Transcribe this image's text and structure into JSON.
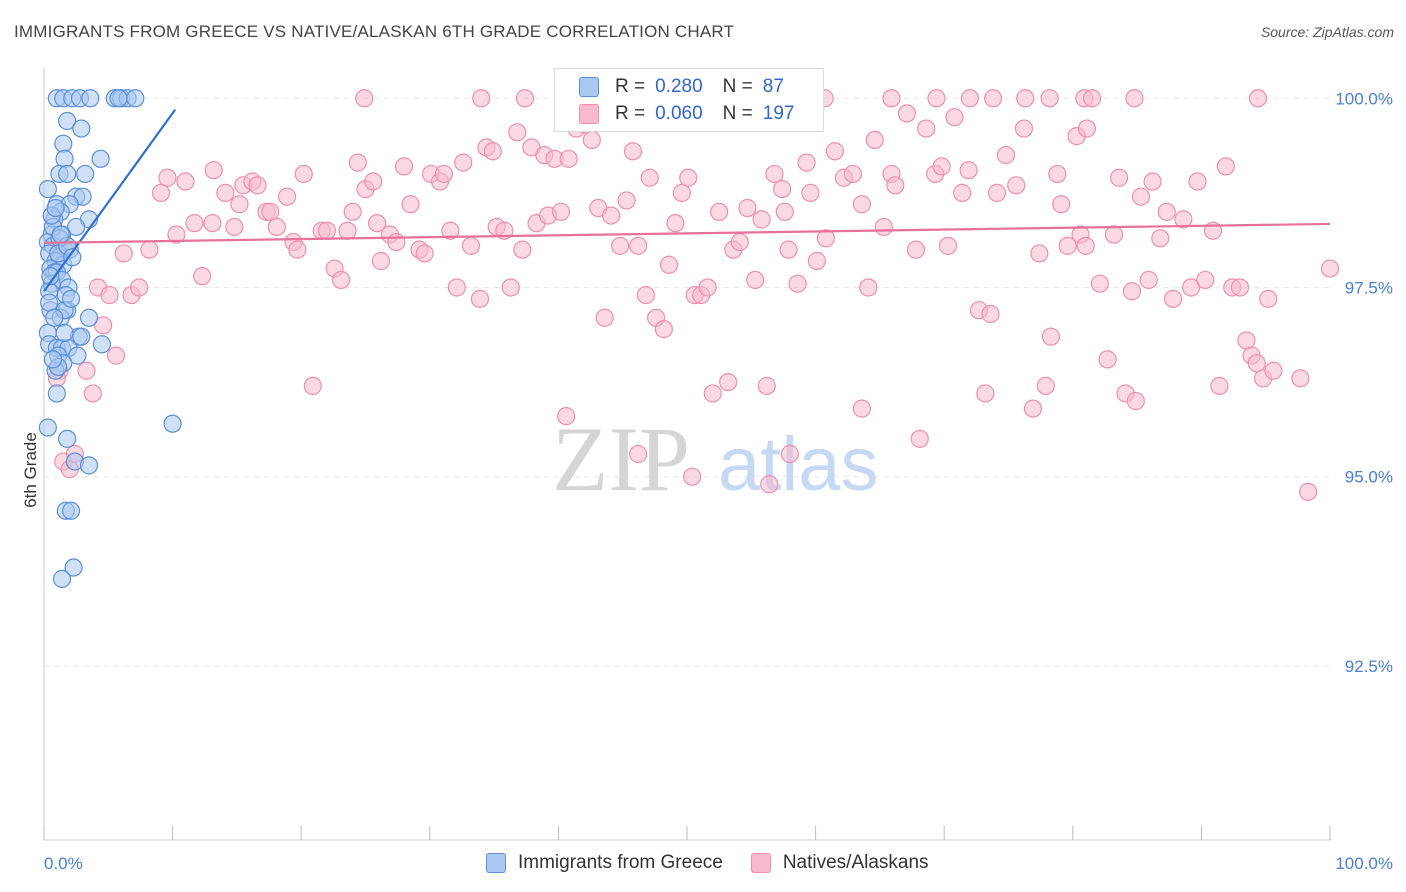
{
  "title": "IMMIGRANTS FROM GREECE VS NATIVE/ALASKAN 6TH GRADE CORRELATION CHART",
  "source": "Source: ZipAtlas.com",
  "watermark": {
    "zip": "ZIP",
    "atlas": "atlas"
  },
  "legend": {
    "rows": [
      {
        "r_label": "R =",
        "r_value": "0.280",
        "n_label": "N =",
        "n_value": "87"
      },
      {
        "r_label": "R =",
        "r_value": "0.060",
        "n_label": "N =",
        "n_value": "197"
      }
    ]
  },
  "bottom_legend": {
    "series1": "Immigrants from Greece",
    "series2": "Natives/Alaskans"
  },
  "colors": {
    "blue_fill": "#aac8f0",
    "blue_stroke": "#5b8fd6",
    "blue_line": "#2f6fd0",
    "pink_fill": "#f7b9cc",
    "pink_stroke": "#ee8fae",
    "pink_line": "#e8709a",
    "grid": "#e6e6e6",
    "tick_text": "#4a7fd0"
  },
  "chart_data": {
    "type": "scatter",
    "title": "IMMIGRANTS FROM GREECE VS NATIVE/ALASKAN 6TH GRADE CORRELATION CHART",
    "xlabel": "",
    "ylabel": "6th Grade",
    "xlim": [
      0,
      100
    ],
    "ylim": [
      90.2,
      100.4
    ],
    "x_tick_labels": [
      "0.0%",
      "100.0%"
    ],
    "y_ticks": [
      92.5,
      95.0,
      97.5,
      100.0
    ],
    "y_tick_labels": [
      "92.5%",
      "95.0%",
      "97.5%",
      "100.0%"
    ],
    "series": [
      {
        "name": "Immigrants from Greece",
        "R": 0.28,
        "N": 87,
        "trend": [
          [
            0,
            97.45
          ],
          [
            10.2,
            99.85
          ]
        ],
        "points": [
          [
            1.0,
            100.0
          ],
          [
            1.5,
            100.0
          ],
          [
            2.2,
            100.0
          ],
          [
            2.8,
            100.0
          ],
          [
            3.6,
            100.0
          ],
          [
            5.5,
            100.0
          ],
          [
            6.0,
            100.0
          ],
          [
            6.5,
            100.0
          ],
          [
            7.1,
            100.0
          ],
          [
            5.8,
            100.0
          ],
          [
            1.8,
            99.7
          ],
          [
            2.9,
            99.6
          ],
          [
            1.5,
            99.4
          ],
          [
            4.4,
            99.2
          ],
          [
            1.6,
            99.2
          ],
          [
            1.2,
            99.0
          ],
          [
            1.8,
            99.0
          ],
          [
            3.2,
            99.0
          ],
          [
            2.5,
            98.7
          ],
          [
            3.0,
            98.7
          ],
          [
            1.0,
            98.6
          ],
          [
            2.0,
            98.6
          ],
          [
            1.3,
            98.5
          ],
          [
            0.8,
            98.4
          ],
          [
            3.5,
            98.4
          ],
          [
            2.5,
            98.3
          ],
          [
            0.6,
            98.2
          ],
          [
            1.4,
            98.2
          ],
          [
            0.3,
            98.1
          ],
          [
            0.7,
            98.05
          ],
          [
            1.6,
            98.0
          ],
          [
            2.0,
            98.0
          ],
          [
            0.4,
            97.95
          ],
          [
            1.2,
            97.9
          ],
          [
            0.9,
            97.85
          ],
          [
            1.5,
            97.8
          ],
          [
            0.5,
            97.75
          ],
          [
            0.8,
            97.7
          ],
          [
            1.0,
            97.7
          ],
          [
            1.4,
            97.6
          ],
          [
            0.6,
            97.55
          ],
          [
            1.9,
            97.5
          ],
          [
            0.4,
            97.45
          ],
          [
            1.7,
            97.4
          ],
          [
            0.5,
            97.2
          ],
          [
            1.8,
            97.2
          ],
          [
            1.3,
            97.1
          ],
          [
            3.5,
            97.1
          ],
          [
            1.6,
            97.2
          ],
          [
            0.3,
            96.9
          ],
          [
            2.7,
            96.85
          ],
          [
            0.4,
            96.75
          ],
          [
            4.5,
            96.75
          ],
          [
            1.0,
            96.7
          ],
          [
            1.4,
            96.7
          ],
          [
            1.9,
            96.7
          ],
          [
            1.1,
            96.6
          ],
          [
            2.6,
            96.6
          ],
          [
            1.5,
            96.5
          ],
          [
            0.9,
            96.4
          ],
          [
            1.0,
            96.1
          ],
          [
            0.3,
            95.65
          ],
          [
            1.8,
            95.5
          ],
          [
            10.0,
            95.7
          ],
          [
            2.4,
            95.2
          ],
          [
            3.5,
            95.15
          ],
          [
            1.7,
            94.55
          ],
          [
            2.1,
            94.55
          ],
          [
            2.3,
            93.8
          ],
          [
            1.4,
            93.65
          ],
          [
            0.3,
            98.8
          ],
          [
            0.7,
            98.3
          ],
          [
            1.2,
            98.15
          ],
          [
            1.1,
            97.95
          ],
          [
            0.5,
            97.65
          ],
          [
            2.1,
            97.35
          ],
          [
            0.6,
            98.45
          ],
          [
            1.8,
            98.05
          ],
          [
            2.2,
            97.9
          ],
          [
            0.9,
            98.55
          ],
          [
            1.3,
            98.2
          ],
          [
            0.4,
            97.3
          ],
          [
            1.6,
            96.9
          ],
          [
            0.8,
            97.1
          ],
          [
            2.9,
            96.85
          ],
          [
            1.1,
            96.45
          ],
          [
            0.7,
            96.55
          ]
        ]
      },
      {
        "name": "Natives/Alaskans",
        "R": 0.06,
        "N": 197,
        "trend": [
          [
            0,
            98.09
          ],
          [
            100,
            98.34
          ]
        ],
        "points": [
          [
            1.2,
            96.4
          ],
          [
            1.0,
            96.3
          ],
          [
            1.5,
            95.2
          ],
          [
            2.0,
            95.1
          ],
          [
            2.4,
            95.3
          ],
          [
            3.3,
            96.4
          ],
          [
            3.8,
            96.1
          ],
          [
            4.2,
            97.5
          ],
          [
            4.6,
            97.0
          ],
          [
            5.1,
            97.4
          ],
          [
            5.6,
            96.6
          ],
          [
            6.2,
            97.95
          ],
          [
            6.8,
            97.4
          ],
          [
            7.4,
            97.5
          ],
          [
            8.2,
            98.0
          ],
          [
            9.1,
            98.75
          ],
          [
            9.6,
            98.95
          ],
          [
            10.3,
            98.2
          ],
          [
            11.0,
            98.9
          ],
          [
            11.7,
            98.35
          ],
          [
            12.3,
            97.65
          ],
          [
            13.1,
            98.35
          ],
          [
            13.2,
            99.05
          ],
          [
            14.1,
            98.75
          ],
          [
            14.8,
            98.3
          ],
          [
            15.2,
            98.6
          ],
          [
            15.5,
            98.85
          ],
          [
            16.2,
            98.9
          ],
          [
            16.6,
            98.85
          ],
          [
            17.3,
            98.5
          ],
          [
            17.6,
            98.5
          ],
          [
            18.1,
            98.3
          ],
          [
            18.9,
            98.7
          ],
          [
            19.4,
            98.1
          ],
          [
            19.7,
            98.0
          ],
          [
            20.2,
            99.0
          ],
          [
            20.9,
            96.2
          ],
          [
            21.6,
            98.25
          ],
          [
            22.0,
            98.25
          ],
          [
            22.6,
            97.75
          ],
          [
            23.1,
            97.6
          ],
          [
            23.6,
            98.25
          ],
          [
            24.0,
            98.5
          ],
          [
            24.4,
            99.15
          ],
          [
            25.0,
            98.8
          ],
          [
            25.6,
            98.9
          ],
          [
            25.9,
            98.35
          ],
          [
            26.2,
            97.85
          ],
          [
            26.9,
            98.2
          ],
          [
            27.4,
            98.1
          ],
          [
            28.0,
            99.1
          ],
          [
            28.5,
            98.6
          ],
          [
            29.2,
            98.0
          ],
          [
            29.6,
            97.95
          ],
          [
            30.1,
            99.0
          ],
          [
            30.8,
            98.9
          ],
          [
            31.1,
            99.0
          ],
          [
            31.6,
            98.25
          ],
          [
            32.1,
            97.5
          ],
          [
            32.6,
            99.15
          ],
          [
            33.2,
            98.05
          ],
          [
            33.9,
            97.35
          ],
          [
            34.4,
            99.35
          ],
          [
            34.9,
            99.3
          ],
          [
            35.2,
            98.3
          ],
          [
            35.8,
            98.25
          ],
          [
            36.3,
            97.5
          ],
          [
            36.8,
            99.55
          ],
          [
            37.2,
            98.0
          ],
          [
            37.9,
            99.35
          ],
          [
            38.3,
            98.35
          ],
          [
            38.9,
            99.25
          ],
          [
            39.2,
            98.45
          ],
          [
            39.7,
            99.2
          ],
          [
            40.2,
            98.5
          ],
          [
            40.8,
            99.2
          ],
          [
            41.4,
            99.6
          ],
          [
            42.1,
            99.65
          ],
          [
            42.6,
            99.45
          ],
          [
            43.1,
            98.55
          ],
          [
            43.6,
            97.1
          ],
          [
            44.1,
            98.45
          ],
          [
            44.8,
            98.05
          ],
          [
            45.3,
            98.65
          ],
          [
            45.8,
            99.3
          ],
          [
            46.2,
            98.05
          ],
          [
            46.8,
            97.4
          ],
          [
            47.1,
            98.95
          ],
          [
            47.6,
            97.1
          ],
          [
            48.2,
            96.95
          ],
          [
            48.6,
            97.8
          ],
          [
            49.1,
            98.35
          ],
          [
            49.6,
            98.75
          ],
          [
            50.1,
            98.95
          ],
          [
            50.6,
            97.4
          ],
          [
            51.1,
            97.4
          ],
          [
            51.6,
            97.5
          ],
          [
            52.0,
            96.1
          ],
          [
            52.5,
            98.5
          ],
          [
            53.2,
            96.25
          ],
          [
            53.6,
            98.0
          ],
          [
            54.1,
            98.1
          ],
          [
            54.7,
            98.55
          ],
          [
            55.3,
            97.6
          ],
          [
            55.8,
            98.4
          ],
          [
            56.2,
            96.2
          ],
          [
            56.8,
            99.0
          ],
          [
            57.4,
            98.8
          ],
          [
            57.6,
            98.5
          ],
          [
            57.9,
            98.0
          ],
          [
            58.6,
            97.55
          ],
          [
            59.3,
            99.15
          ],
          [
            59.6,
            98.75
          ],
          [
            60.1,
            97.85
          ],
          [
            60.8,
            98.15
          ],
          [
            61.5,
            99.3
          ],
          [
            62.2,
            98.95
          ],
          [
            62.9,
            99.0
          ],
          [
            63.6,
            98.6
          ],
          [
            64.1,
            97.5
          ],
          [
            64.6,
            99.45
          ],
          [
            65.3,
            98.3
          ],
          [
            65.9,
            99.0
          ],
          [
            66.2,
            98.85
          ],
          [
            67.1,
            99.8
          ],
          [
            67.8,
            98.0
          ],
          [
            68.6,
            99.6
          ],
          [
            69.3,
            99.0
          ],
          [
            69.8,
            99.1
          ],
          [
            70.3,
            98.05
          ],
          [
            70.8,
            99.75
          ],
          [
            71.4,
            98.75
          ],
          [
            71.9,
            99.05
          ],
          [
            72.7,
            97.2
          ],
          [
            73.2,
            96.1
          ],
          [
            73.6,
            97.15
          ],
          [
            74.1,
            98.75
          ],
          [
            74.8,
            99.25
          ],
          [
            75.6,
            98.85
          ],
          [
            76.2,
            99.6
          ],
          [
            77.4,
            97.95
          ],
          [
            77.9,
            96.2
          ],
          [
            78.3,
            96.85
          ],
          [
            78.8,
            99.0
          ],
          [
            79.1,
            98.6
          ],
          [
            79.6,
            98.05
          ],
          [
            80.3,
            99.5
          ],
          [
            80.6,
            98.2
          ],
          [
            81.0,
            98.05
          ],
          [
            82.1,
            97.55
          ],
          [
            82.7,
            96.55
          ],
          [
            83.2,
            98.2
          ],
          [
            83.6,
            98.95
          ],
          [
            84.1,
            96.1
          ],
          [
            84.6,
            97.45
          ],
          [
            84.9,
            96.0
          ],
          [
            85.3,
            98.7
          ],
          [
            85.9,
            97.6
          ],
          [
            86.2,
            98.9
          ],
          [
            86.8,
            98.15
          ],
          [
            87.3,
            98.5
          ],
          [
            87.8,
            97.35
          ],
          [
            88.6,
            98.4
          ],
          [
            89.2,
            97.5
          ],
          [
            89.7,
            98.9
          ],
          [
            90.3,
            97.6
          ],
          [
            90.9,
            98.25
          ],
          [
            91.4,
            96.2
          ],
          [
            91.9,
            99.1
          ],
          [
            92.4,
            97.5
          ],
          [
            93.0,
            97.5
          ],
          [
            93.5,
            96.8
          ],
          [
            93.9,
            96.6
          ],
          [
            94.3,
            96.5
          ],
          [
            94.8,
            96.3
          ],
          [
            95.2,
            97.35
          ],
          [
            95.6,
            96.4
          ],
          [
            97.7,
            96.3
          ],
          [
            98.3,
            94.8
          ],
          [
            100.0,
            97.75
          ],
          [
            24.9,
            100.0
          ],
          [
            34.0,
            100.0
          ],
          [
            37.4,
            100.0
          ],
          [
            45.5,
            100.0
          ],
          [
            52.3,
            100.0
          ],
          [
            60.7,
            100.0
          ],
          [
            65.9,
            100.0
          ],
          [
            69.4,
            100.0
          ],
          [
            72.0,
            100.0
          ],
          [
            73.8,
            100.0
          ],
          [
            76.3,
            100.0
          ],
          [
            78.2,
            100.0
          ],
          [
            80.9,
            100.0
          ],
          [
            81.5,
            100.0
          ],
          [
            84.8,
            100.0
          ],
          [
            94.4,
            100.0
          ],
          [
            81.1,
            99.6
          ],
          [
            50.4,
            95.0
          ],
          [
            46.2,
            95.3
          ],
          [
            40.6,
            95.8
          ],
          [
            68.1,
            95.5
          ],
          [
            58.0,
            95.3
          ],
          [
            63.6,
            95.9
          ],
          [
            76.9,
            95.9
          ],
          [
            56.4,
            94.9
          ]
        ]
      }
    ]
  }
}
